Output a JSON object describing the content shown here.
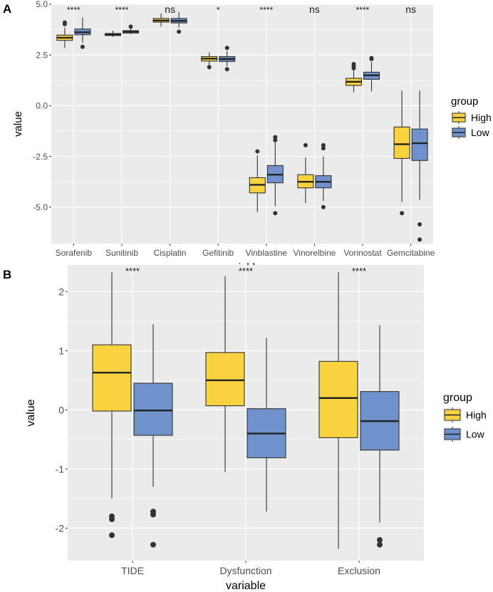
{
  "colors": {
    "high": "#F9D33F",
    "low": "#6F92CD",
    "panel_bg": "#EBEBEB",
    "grid": "#FFFFFF"
  },
  "chart_data": [
    {
      "type": "boxplot",
      "panel_label": "A",
      "xlabel": "variable",
      "ylabel": "value",
      "ylim": [
        -6.8,
        5.0
      ],
      "yticks": [
        5.0,
        2.5,
        0.0,
        -2.5,
        -5.0
      ],
      "ytick_labels": [
        "5.0",
        "2.5",
        "0.0",
        "-2.5",
        "-5.0"
      ],
      "categories": [
        "Sorafenib",
        "Sunitinib",
        "Cisplatin",
        "Gefitinib",
        "Vinblastine",
        "Vinorelbine",
        "Vorinostat",
        "Gemcitabine"
      ],
      "significance": [
        "****",
        "****",
        "ns",
        "*",
        "****",
        "ns",
        "****",
        "ns"
      ],
      "legend": {
        "title": "group",
        "entries": [
          "High",
          "Low"
        ],
        "position": "right"
      },
      "series": [
        {
          "name": "High",
          "boxes": [
            {
              "whislo": 2.85,
              "q1": 3.22,
              "med": 3.35,
              "q3": 3.48,
              "whishi": 3.85,
              "fliers": [
                4.02,
                4.1
              ]
            },
            {
              "whislo": 3.38,
              "q1": 3.46,
              "med": 3.5,
              "q3": 3.56,
              "whishi": 3.7,
              "fliers": []
            },
            {
              "whislo": 3.9,
              "q1": 4.12,
              "med": 4.2,
              "q3": 4.3,
              "whishi": 4.55,
              "fliers": []
            },
            {
              "whislo": 2.0,
              "q1": 2.2,
              "med": 2.32,
              "q3": 2.42,
              "whishi": 2.62,
              "fliers": [
                1.9
              ]
            },
            {
              "whislo": -5.25,
              "q1": -4.3,
              "med": -3.9,
              "q3": -3.55,
              "whishi": -2.45,
              "fliers": [
                -2.25
              ]
            },
            {
              "whislo": -4.8,
              "q1": -4.05,
              "med": -3.75,
              "q3": -3.4,
              "whishi": -2.55,
              "fliers": [
                -1.95
              ]
            },
            {
              "whislo": 0.65,
              "q1": 1.0,
              "med": 1.18,
              "q3": 1.35,
              "whishi": 1.75,
              "fliers": [
                1.85,
                1.95,
                2.05
              ]
            },
            {
              "whislo": -4.75,
              "q1": -2.6,
              "med": -1.9,
              "q3": -1.05,
              "whishi": 0.75,
              "fliers": [
                -5.3
              ]
            }
          ]
        },
        {
          "name": "Low",
          "boxes": [
            {
              "whislo": 3.1,
              "q1": 3.5,
              "med": 3.62,
              "q3": 3.78,
              "whishi": 4.35,
              "fliers": [
                2.9
              ]
            },
            {
              "whislo": 3.52,
              "q1": 3.58,
              "med": 3.65,
              "q3": 3.7,
              "whishi": 3.82,
              "fliers": [
                3.9
              ]
            },
            {
              "whislo": 3.85,
              "q1": 4.08,
              "med": 4.18,
              "q3": 4.3,
              "whishi": 4.62,
              "fliers": [
                3.65
              ]
            },
            {
              "whislo": 1.95,
              "q1": 2.18,
              "med": 2.3,
              "q3": 2.42,
              "whishi": 2.7,
              "fliers": [
                1.8,
                2.85
              ]
            },
            {
              "whislo": -4.95,
              "q1": -3.8,
              "med": -3.4,
              "q3": -2.95,
              "whishi": -1.8,
              "fliers": [
                -1.55,
                -1.7,
                -5.3
              ]
            },
            {
              "whislo": -4.7,
              "q1": -4.05,
              "med": -3.75,
              "q3": -3.45,
              "whishi": -2.5,
              "fliers": [
                -1.95,
                -2.1,
                -5.0
              ]
            },
            {
              "whislo": 0.7,
              "q1": 1.3,
              "med": 1.5,
              "q3": 1.65,
              "whishi": 2.15,
              "fliers": [
                2.3,
                2.35
              ]
            },
            {
              "whislo": -4.65,
              "q1": -2.7,
              "med": -1.85,
              "q3": -1.15,
              "whishi": 0.75,
              "fliers": [
                -5.85,
                -6.6
              ]
            }
          ]
        }
      ]
    },
    {
      "type": "boxplot",
      "panel_label": "B",
      "xlabel": "variable",
      "ylabel": "value",
      "ylim": [
        -2.55,
        2.45
      ],
      "yticks": [
        2,
        1,
        0,
        -1,
        -2
      ],
      "ytick_labels": [
        "2",
        "1",
        "0",
        "-1",
        "-2"
      ],
      "categories": [
        "TIDE",
        "Dysfunction",
        "Exclusion"
      ],
      "significance": [
        "****",
        "****",
        "****"
      ],
      "legend": {
        "title": "group",
        "entries": [
          "High",
          "Low"
        ],
        "position": "right"
      },
      "series": [
        {
          "name": "High",
          "boxes": [
            {
              "whislo": -1.5,
              "q1": -0.02,
              "med": 0.63,
              "q3": 1.1,
              "whishi": 2.33,
              "fliers": [
                -1.8,
                -1.85,
                -2.12
              ]
            },
            {
              "whislo": -1.05,
              "q1": 0.07,
              "med": 0.5,
              "q3": 0.97,
              "whishi": 2.26,
              "fliers": []
            },
            {
              "whislo": -2.35,
              "q1": -0.47,
              "med": 0.2,
              "q3": 0.82,
              "whishi": 2.33,
              "fliers": []
            }
          ]
        },
        {
          "name": "Low",
          "boxes": [
            {
              "whislo": -1.3,
              "q1": -0.43,
              "med": -0.01,
              "q3": 0.45,
              "whishi": 1.45,
              "fliers": [
                -1.72,
                -1.77,
                -2.28
              ]
            },
            {
              "whislo": -1.72,
              "q1": -0.81,
              "med": -0.4,
              "q3": 0.02,
              "whishi": 1.22,
              "fliers": []
            },
            {
              "whislo": -1.9,
              "q1": -0.68,
              "med": -0.19,
              "q3": 0.31,
              "whishi": 1.43,
              "fliers": [
                -2.2,
                -2.28
              ]
            }
          ]
        }
      ]
    }
  ]
}
